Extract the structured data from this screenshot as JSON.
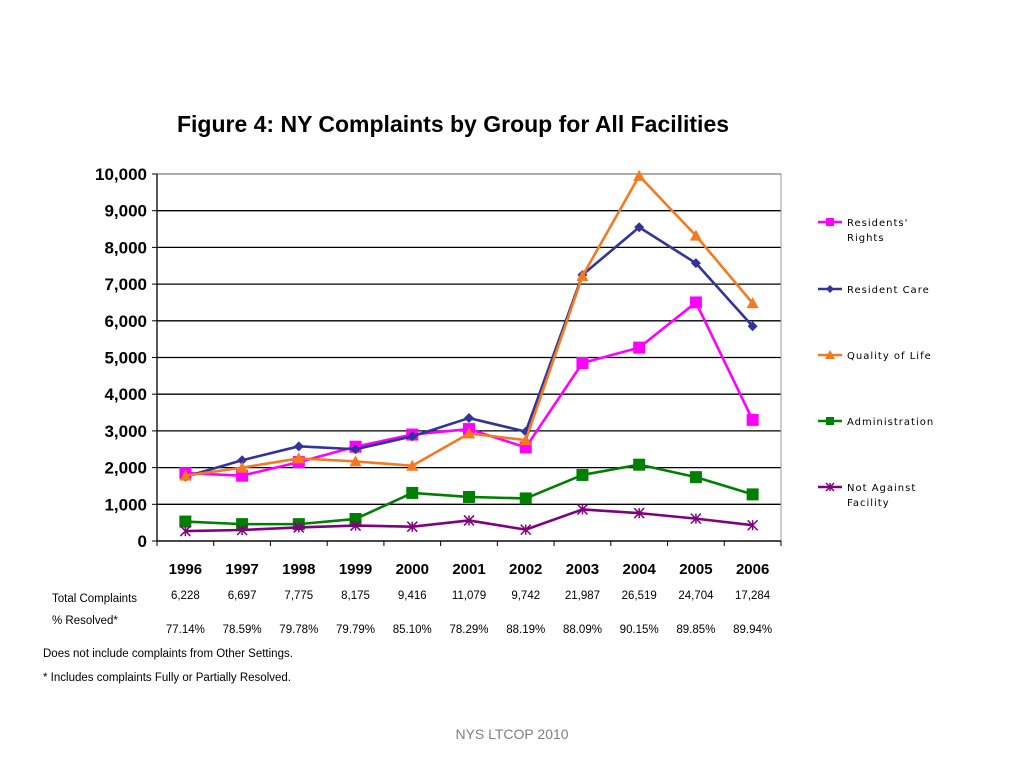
{
  "chart_data": {
    "type": "line",
    "title": "Figure 4: NY Complaints by Group for All Facilities",
    "categories": [
      "1996",
      "1997",
      "1998",
      "1999",
      "2000",
      "2001",
      "2002",
      "2003",
      "2004",
      "2005",
      "2006"
    ],
    "ylim": [
      0,
      10000
    ],
    "yticks": [
      "0",
      "1,000",
      "2,000",
      "3,000",
      "4,000",
      "5,000",
      "6,000",
      "7,000",
      "8,000",
      "9,000",
      "10,000"
    ],
    "grid": true,
    "legend_position": "right",
    "series": [
      {
        "name": "Residents' Rights",
        "legend_lines": [
          "Residents'",
          "Rights"
        ],
        "color": "#ff00ff",
        "marker": "square",
        "values": [
          1850,
          1780,
          2150,
          2570,
          2900,
          3050,
          2550,
          4850,
          5270,
          6500,
          3300
        ]
      },
      {
        "name": "Resident Care",
        "legend_lines": [
          "Resident Care"
        ],
        "color": "#333399",
        "marker": "diamond",
        "values": [
          1750,
          2200,
          2580,
          2500,
          2850,
          3350,
          2980,
          7250,
          8550,
          7570,
          5850
        ]
      },
      {
        "name": "Quality of Life",
        "legend_lines": [
          "Quality of Life"
        ],
        "color": "#f47920",
        "marker": "triangle",
        "values": [
          1780,
          2000,
          2250,
          2170,
          2050,
          2930,
          2750,
          7220,
          9950,
          8320,
          6480
        ]
      },
      {
        "name": "Administration",
        "legend_lines": [
          "Administration"
        ],
        "color": "#008000",
        "marker": "square",
        "values": [
          530,
          460,
          460,
          600,
          1310,
          1200,
          1160,
          1800,
          2080,
          1740,
          1270
        ]
      },
      {
        "name": "Not Against Facility",
        "legend_lines": [
          "Not Against",
          "Facility"
        ],
        "color": "#800080",
        "marker": "star",
        "values": [
          270,
          300,
          370,
          420,
          390,
          560,
          310,
          860,
          760,
          610,
          430
        ]
      }
    ]
  },
  "table": {
    "total_label": "Total Complaints",
    "resolved_label": "%  Resolved*",
    "totals": [
      "6,228",
      "6,697",
      "7,775",
      "8,175",
      "9,416",
      "11,079",
      "9,742",
      "21,987",
      "26,519",
      "24,704",
      "17,284"
    ],
    "resolved": [
      "77.14%",
      "78.59%",
      "79.78%",
      "79.79%",
      "85.10%",
      "78.29%",
      "88.19%",
      "88.09%",
      "90.15%",
      "89.85%",
      "89.94%"
    ]
  },
  "notes": {
    "note1": "Does not include complaints from Other Settings.",
    "note2": "* Includes complaints Fully or Partially Resolved."
  },
  "footer": "NYS LTCOP 2010"
}
